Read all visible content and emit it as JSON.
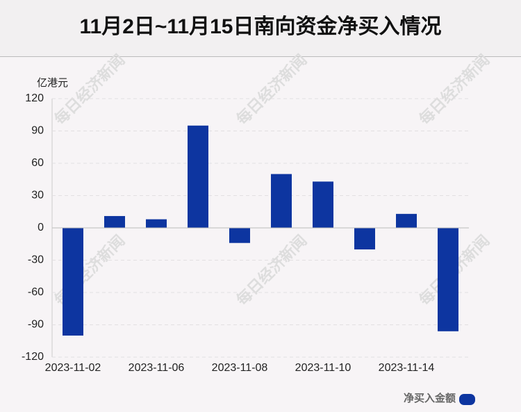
{
  "chart_data": {
    "type": "bar",
    "title": "11月2日~11月15日南向资金净买入情况",
    "y_label": "亿港元",
    "watermark": "每日经济新闻",
    "categories": [
      "2023-11-02",
      null,
      "2023-11-06",
      null,
      "2023-11-08",
      null,
      "2023-11-10",
      null,
      "2023-11-14",
      null
    ],
    "series": [
      {
        "name": "净买入金额",
        "color": "#0d35a0",
        "values": [
          -100,
          11,
          8,
          95,
          -14,
          50,
          43,
          -20,
          13,
          -96
        ]
      }
    ],
    "ylim": [
      -120,
      120
    ],
    "yticks": [
      -120,
      -90,
      -60,
      -30,
      0,
      30,
      60,
      90,
      120
    ],
    "grid": true,
    "legend": "bottom-right"
  }
}
